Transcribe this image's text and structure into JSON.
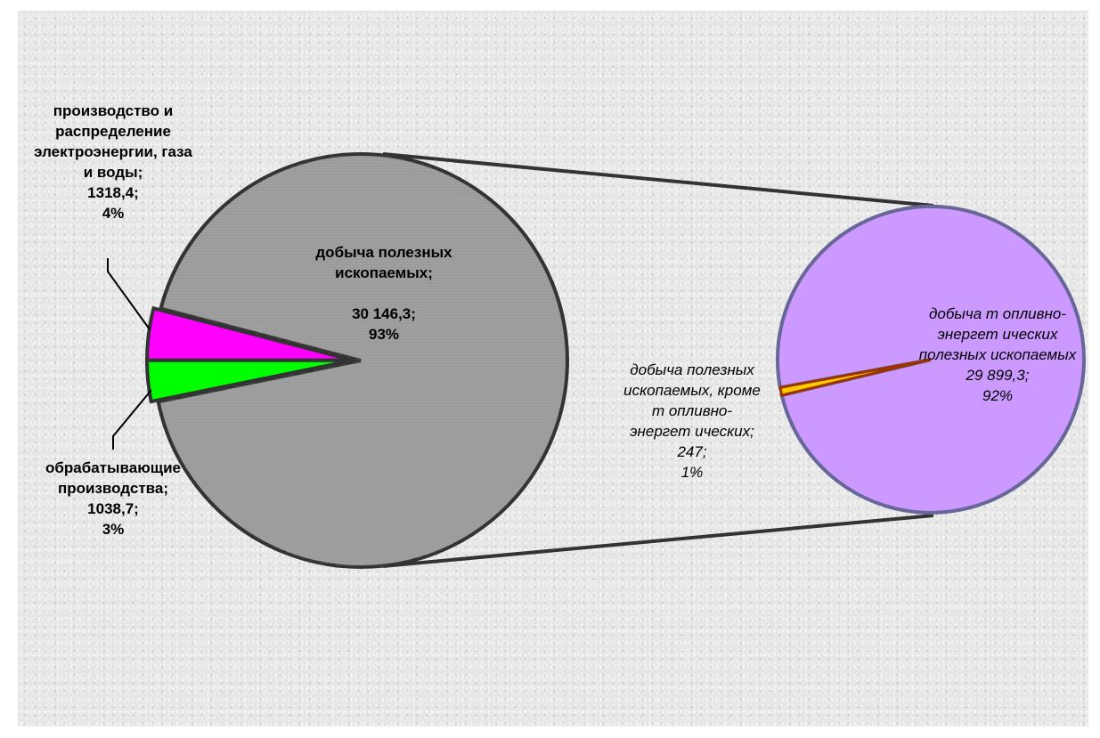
{
  "chart_data": {
    "type": "pie",
    "subtype": "pie-of-pie",
    "main_pie": {
      "slices": [
        {
          "key": "mining",
          "name": "добыча полезных ископаемых",
          "value": 30146.3,
          "percent": 93,
          "color": "#999999",
          "label_lines": [
            "добыча полезных",
            "ископаемых;",
            "",
            "30 146,3;",
            "93%"
          ]
        },
        {
          "key": "utilities",
          "name": "производство и распределение электроэнергии, газа и воды",
          "value": 1318.4,
          "percent": 4,
          "color": "#ff00ff",
          "label_lines": [
            "производство и",
            "распределение",
            "электроэнергии, газа",
            "и воды;",
            "1318,4;",
            "4%"
          ]
        },
        {
          "key": "manufacturing",
          "name": "обрабатывающие производства",
          "value": 1038.7,
          "percent": 3,
          "color": "#00ff00",
          "label_lines": [
            "обрабатывающие",
            "производства;",
            "1038,7;",
            "3%"
          ]
        }
      ]
    },
    "secondary_pie": {
      "slices": [
        {
          "key": "fuel",
          "name": "добыча топливно-энергетических полезных ископаемых",
          "value": 29899.3,
          "percent": 92,
          "color": "#cc99ff",
          "label_lines": [
            "добыча т опливно-",
            "энергет ических",
            "полезных ископаемых",
            "29 899,3;",
            "92%"
          ]
        },
        {
          "key": "nonfuel",
          "name": "добыча полезных ископаемых, кроме топливно-энергетических",
          "value": 247,
          "percent": 1,
          "color": "#ffcc00",
          "label_lines": [
            "добыча полезных",
            "ископаемых, кроме",
            "т опливно-",
            "энергет ических;",
            "247;",
            "1%"
          ]
        }
      ]
    }
  }
}
